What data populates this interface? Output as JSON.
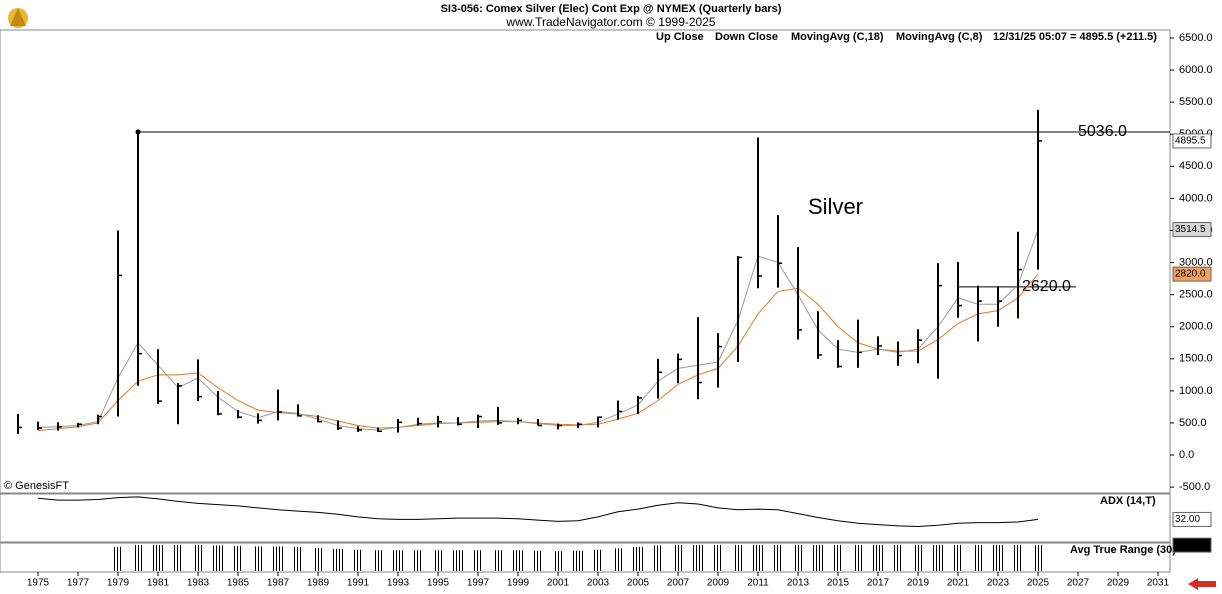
{
  "chart_data": {
    "type": "ohlc",
    "title": "SI3-056:  Comex Silver (Elec) Cont Exp @ NYMEX  (Quarterly bars)",
    "subtitle": "www.TradeNavigator.com © 1999-2025",
    "up_label": "Up Close",
    "down_label": "Down Close",
    "last_quote": "12/31/25 05:07 = 4895.5 (+211.5)",
    "annotation": "Silver",
    "credit": "© GenesisFT",
    "bar_color": "#000000",
    "x": [
      1974,
      1975,
      1976,
      1977,
      1978,
      1979,
      1980,
      1981,
      1982,
      1983,
      1984,
      1985,
      1986,
      1987,
      1988,
      1989,
      1990,
      1991,
      1992,
      1993,
      1994,
      1995,
      1996,
      1997,
      1998,
      1999,
      2000,
      2001,
      2002,
      2003,
      2004,
      2005,
      2006,
      2007,
      2008,
      2009,
      2010,
      2011,
      2012,
      2013,
      2014,
      2015,
      2016,
      2017,
      2018,
      2019,
      2020,
      2021,
      2022,
      2023,
      2024,
      2025
    ],
    "high": [
      640,
      520,
      510,
      500,
      630,
      3500,
      5036,
      1650,
      1120,
      1490,
      1000,
      700,
      650,
      1020,
      790,
      620,
      540,
      450,
      430,
      560,
      580,
      610,
      590,
      630,
      750,
      580,
      560,
      490,
      510,
      600,
      850,
      920,
      1500,
      1580,
      2150,
      1900,
      3100,
      4950,
      3740,
      3240,
      2240,
      1790,
      2110,
      1850,
      1770,
      1960,
      2990,
      3010,
      2640,
      2630,
      3480,
      5380
    ],
    "low": [
      330,
      390,
      380,
      430,
      480,
      600,
      1080,
      800,
      480,
      840,
      620,
      570,
      490,
      540,
      600,
      510,
      390,
      360,
      360,
      350,
      460,
      430,
      460,
      420,
      470,
      480,
      460,
      400,
      420,
      430,
      550,
      640,
      880,
      1120,
      870,
      1050,
      1450,
      2600,
      2610,
      1800,
      1500,
      1360,
      1360,
      1560,
      1390,
      1430,
      1190,
      2140,
      1770,
      2000,
      2130,
      2890
    ],
    "close": [
      430,
      420,
      440,
      480,
      600,
      2800,
      1580,
      840,
      1080,
      910,
      640,
      590,
      540,
      670,
      610,
      520,
      420,
      390,
      370,
      510,
      490,
      520,
      480,
      600,
      500,
      540,
      460,
      460,
      480,
      590,
      680,
      890,
      1290,
      1490,
      1130,
      1690,
      3080,
      2790,
      2990,
      1950,
      1560,
      1380,
      1600,
      1700,
      1550,
      1790,
      2640,
      2330,
      2400,
      2400,
      2890,
      4896
    ],
    "moving_averages": [
      {
        "name": "MovingAvg (C,18)",
        "color": "#e07a2a",
        "values": [
          null,
          380,
          410,
          440,
          500,
          850,
          1150,
          1250,
          1250,
          1280,
          1050,
          850,
          700,
          660,
          640,
          600,
          530,
          460,
          420,
          430,
          460,
          490,
          500,
          510,
          520,
          520,
          500,
          480,
          470,
          480,
          560,
          650,
          850,
          1100,
          1250,
          1350,
          1700,
          2200,
          2550,
          2600,
          2350,
          2000,
          1750,
          1650,
          1620,
          1620,
          1800,
          2050,
          2200,
          2250,
          2450,
          2820
        ]
      },
      {
        "name": "MovingAvg (C,8)",
        "color": "#9a9a9a",
        "values": [
          null,
          430,
          440,
          460,
          520,
          1200,
          1750,
          1400,
          1050,
          1200,
          900,
          680,
          580,
          680,
          650,
          560,
          460,
          410,
          390,
          430,
          480,
          500,
          500,
          530,
          540,
          520,
          490,
          460,
          460,
          510,
          640,
          780,
          1150,
          1350,
          1400,
          1450,
          2100,
          3100,
          3000,
          2500,
          1950,
          1650,
          1600,
          1650,
          1600,
          1650,
          2000,
          2450,
          2350,
          2350,
          2650,
          3514
        ]
      }
    ],
    "ylim": [
      -592,
      6625
    ],
    "yticks": [
      {
        "value": 6500,
        "label": "6500.0"
      },
      {
        "value": 6000,
        "label": "6000.0"
      },
      {
        "value": 5500,
        "label": "5500.0"
      },
      {
        "value": 5000,
        "label": "5000.0"
      },
      {
        "value": 4500,
        "label": "4500.0"
      },
      {
        "value": 4000,
        "label": "4000.0"
      },
      {
        "value": 3500,
        "label": "3500.0"
      },
      {
        "value": 3000,
        "label": "3000.0"
      },
      {
        "value": 2500,
        "label": "2500.0"
      },
      {
        "value": 2000,
        "label": "2000.0"
      },
      {
        "value": 1500,
        "label": "1500.0"
      },
      {
        "value": 1000,
        "label": "1000.0"
      },
      {
        "value": 500,
        "label": "500.0"
      },
      {
        "value": 0,
        "label": "0.0"
      },
      {
        "value": -500,
        "label": "-500.0"
      }
    ],
    "xlim": [
      1973.1,
      2031.6
    ],
    "xticks": [
      1975,
      1977,
      1979,
      1981,
      1983,
      1985,
      1987,
      1989,
      1991,
      1993,
      1995,
      1997,
      1999,
      2001,
      2003,
      2005,
      2007,
      2009,
      2011,
      2013,
      2015,
      2017,
      2019,
      2021,
      2023,
      2025,
      2027,
      2029,
      2031
    ],
    "price_boxes": [
      {
        "value": 4895.5,
        "label": "4895.5"
      },
      {
        "value": 3514.5,
        "label": "3514.5"
      },
      {
        "value": 2820,
        "label": "2820.0"
      }
    ],
    "hlines": [
      {
        "value": 5036,
        "label": "5036.0"
      },
      {
        "value": 2620,
        "label": "2620.0"
      }
    ],
    "indicators": [
      {
        "type": "line",
        "name": "ADX (14,T)",
        "color": "#000000",
        "ylim": [
          0,
          70
        ],
        "last": {
          "value": 32,
          "label": "32.00"
        },
        "values": [
          null,
          65,
          62,
          62,
          63,
          66,
          67,
          64,
          60,
          57,
          55,
          53,
          50,
          47,
          45,
          43,
          40,
          36,
          33,
          32,
          32,
          33,
          34,
          34,
          34,
          33,
          31,
          29,
          30,
          36,
          44,
          48,
          54,
          58,
          56,
          50,
          47,
          48,
          47,
          41,
          35,
          30,
          26,
          24,
          22,
          21,
          23,
          26,
          27,
          27,
          28,
          32
        ]
      },
      {
        "type": "bar",
        "name": "Avg True Range (30)",
        "color": "#000000",
        "ylim": [
          0,
          560
        ],
        "last": {
          "value": 537.03,
          "label": "537.03"
        },
        "values": [
          null,
          null,
          null,
          null,
          null,
          500,
          540,
          540,
          540,
          540,
          530,
          520,
          510,
          510,
          500,
          480,
          460,
          440,
          430,
          430,
          430,
          430,
          430,
          430,
          430,
          430,
          420,
          410,
          420,
          440,
          470,
          500,
          530,
          540,
          540,
          540,
          540,
          540,
          540,
          540,
          540,
          540,
          540,
          540,
          540,
          540,
          540,
          540,
          540,
          540,
          540,
          537
        ]
      }
    ]
  }
}
